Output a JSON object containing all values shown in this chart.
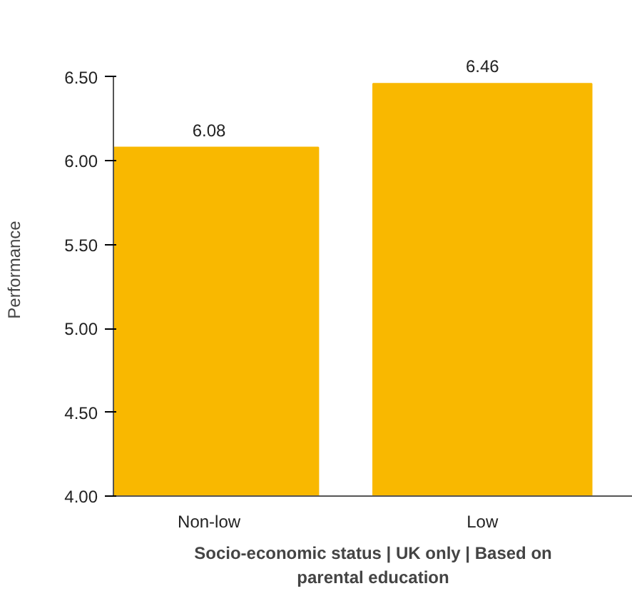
{
  "chart_data": {
    "type": "bar",
    "ylabel": "Performance",
    "xlabel": "Socio-economic status | UK only | Based on parental education",
    "categories": [
      "Non-low",
      "Low"
    ],
    "values": [
      6.08,
      6.46
    ],
    "color": "#f9b800",
    "data_labels": true,
    "ylim": [
      4.0,
      6.5
    ],
    "yticks": [
      {
        "value": 4.0,
        "label": "4.00"
      },
      {
        "value": 4.5,
        "label": "4.50"
      },
      {
        "value": 5.0,
        "label": "5.00"
      },
      {
        "value": 5.5,
        "label": "5.50"
      },
      {
        "value": 6.0,
        "label": "6.00"
      },
      {
        "value": 6.5,
        "label": "6.50"
      }
    ],
    "grid": false,
    "legend": false
  }
}
